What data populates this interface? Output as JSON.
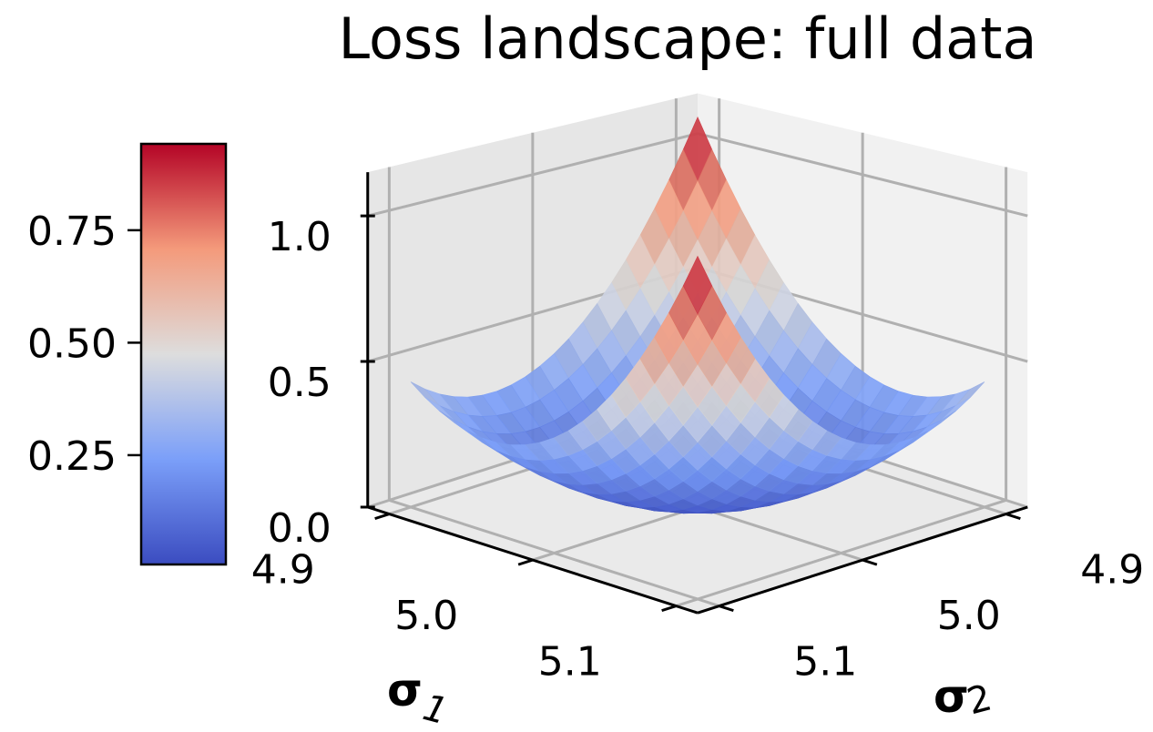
{
  "chart_data": {
    "type": "surface3d",
    "title": "Loss landscape: full data",
    "xlabel_main": "σ",
    "xlabel_sub": "1",
    "ylabel_main": "σ",
    "ylabel_sub": "2",
    "zlabel": "",
    "x_ticks": [
      "4.9",
      "5.0",
      "5.1"
    ],
    "y_ticks": [
      "4.9",
      "5.0",
      "5.1"
    ],
    "z_ticks": [
      "0.0",
      "0.5",
      "1.0"
    ],
    "xlim": [
      4.9,
      5.1
    ],
    "ylim": [
      4.9,
      5.1
    ],
    "zlim": [
      0.0,
      1.1
    ],
    "grid": true,
    "surface": {
      "function": "z = 0.275*((s1-5)/0.1 + (s2-5)/0.1)^2 + 0.1075*((s1-5)/0.1 - (s2-5)/0.1)^2",
      "minimum": {
        "s1": 5.0,
        "s2": 5.0,
        "z": 0.0
      },
      "corner_values": {
        "4.9,4.9": 1.1,
        "5.1,5.1": 1.1,
        "4.9,5.1": 0.43,
        "5.1,4.9": 0.43
      },
      "grid_resolution": 20,
      "colormap": "coolwarm"
    },
    "colorbar": {
      "ticks": [
        "0.25",
        "0.50",
        "0.75"
      ],
      "tick_values": [
        0.25,
        0.5,
        0.75
      ],
      "range": [
        0.007,
        0.942
      ],
      "placement": "left"
    },
    "colors": {
      "low": "#3b4cc0",
      "mid": "#dddddd",
      "high": "#b40426"
    }
  }
}
